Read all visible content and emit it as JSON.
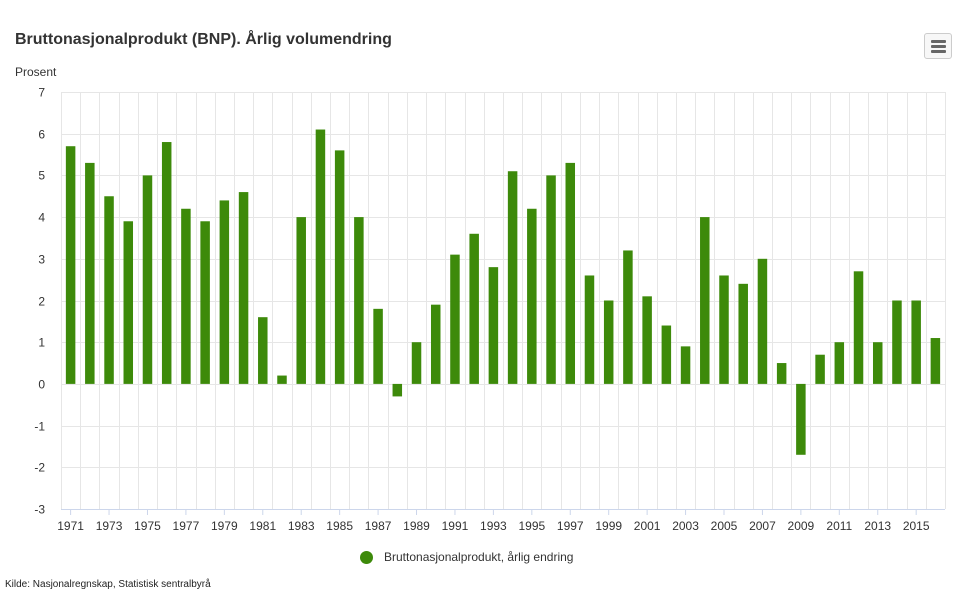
{
  "title": "Bruttonasjonalprodukt (BNP). Årlig volumendring",
  "source": "Kilde: Nasjonalregnskap, Statistisk sentralbyrå",
  "menu_icon": "hamburger-menu-icon",
  "colors": {
    "bar": "#3d8a0a",
    "grid": "#e6e6e6",
    "axis": "#ccd6eb"
  },
  "chart_data": {
    "type": "bar",
    "title": "Bruttonasjonalprodukt (BNP). Årlig volumendring",
    "ylabel": "Prosent",
    "xlabel": "",
    "ylim": [
      -3,
      7
    ],
    "yticks": [
      -3,
      -2,
      -1,
      0,
      1,
      2,
      3,
      4,
      5,
      6,
      7
    ],
    "categories": [
      "1971",
      "1972",
      "1973",
      "1974",
      "1975",
      "1976",
      "1977",
      "1978",
      "1979",
      "1980",
      "1981",
      "1982",
      "1983",
      "1984",
      "1985",
      "1986",
      "1987",
      "1988",
      "1989",
      "1990",
      "1991",
      "1992",
      "1993",
      "1994",
      "1995",
      "1996",
      "1997",
      "1998",
      "1999",
      "2000",
      "2001",
      "2002",
      "2003",
      "2004",
      "2005",
      "2006",
      "2007",
      "2008",
      "2009",
      "2010",
      "2011",
      "2012",
      "2013",
      "2014",
      "2015",
      "2016"
    ],
    "xticks": [
      "1971",
      "1973",
      "1975",
      "1977",
      "1979",
      "1981",
      "1983",
      "1985",
      "1987",
      "1989",
      "1991",
      "1993",
      "1995",
      "1997",
      "1999",
      "2001",
      "2003",
      "2005",
      "2007",
      "2009",
      "2011",
      "2013",
      "2015"
    ],
    "series": [
      {
        "name": "Bruttonasjonalprodukt, årlig endring",
        "color": "#3d8a0a",
        "values": [
          5.7,
          5.3,
          4.5,
          3.9,
          5.0,
          5.8,
          4.2,
          3.9,
          4.4,
          4.6,
          1.6,
          0.2,
          4.0,
          6.1,
          5.6,
          4.0,
          1.8,
          -0.3,
          1.0,
          1.9,
          3.1,
          3.6,
          2.8,
          5.1,
          4.2,
          5.0,
          5.3,
          2.6,
          2.0,
          3.2,
          2.1,
          1.4,
          0.9,
          4.0,
          2.6,
          2.4,
          3.0,
          0.5,
          -1.7,
          0.7,
          1.0,
          2.7,
          1.0,
          2.0,
          2.0,
          1.1
        ]
      }
    ],
    "grid": true,
    "legend": "bottom-center"
  }
}
